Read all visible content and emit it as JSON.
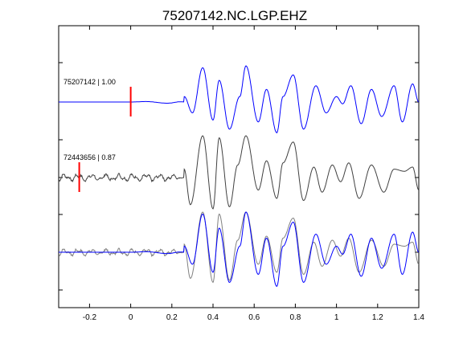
{
  "chart_data": {
    "type": "line",
    "title": "75207142.NC.LGP.EHZ",
    "xlabel": "",
    "ylabel": "",
    "xlim": [
      -0.35,
      1.4
    ],
    "x_ticks": [
      {
        "value": -0.2,
        "label": "-0.2"
      },
      {
        "value": 0,
        "label": "0"
      },
      {
        "value": 0.2,
        "label": "0.2"
      },
      {
        "value": 0.4,
        "label": "0.4"
      },
      {
        "value": 0.6,
        "label": "0.6"
      },
      {
        "value": 0.8,
        "label": "0.8"
      },
      {
        "value": 1.0,
        "label": "1"
      },
      {
        "value": 1.2,
        "label": "1.2"
      },
      {
        "value": 1.4,
        "label": "1.4"
      }
    ],
    "grid": false,
    "legend": "none",
    "traces": [
      {
        "id": "trace-1",
        "label": "75207142 | 1.00",
        "color": "#0000ff",
        "pick_time": 0.0
      },
      {
        "id": "trace-2",
        "label": "72443656 | 0.87",
        "color": "#404040",
        "pick_time": -0.25
      },
      {
        "id": "overlay",
        "label": "",
        "components": [
          "trace-2",
          "trace-1"
        ]
      }
    ],
    "pick_color": "#ff0000",
    "waveform_peaks": {
      "trace-1": [
        {
          "x": 0.26,
          "y": 0.15
        },
        {
          "x": 0.3,
          "y": -0.3
        },
        {
          "x": 0.35,
          "y": 0.95
        },
        {
          "x": 0.4,
          "y": -0.5
        },
        {
          "x": 0.43,
          "y": 0.6
        },
        {
          "x": 0.48,
          "y": -0.75
        },
        {
          "x": 0.53,
          "y": 0.15
        },
        {
          "x": 0.56,
          "y": 1.0
        },
        {
          "x": 0.62,
          "y": -0.55
        },
        {
          "x": 0.66,
          "y": 0.35
        },
        {
          "x": 0.71,
          "y": -0.85
        },
        {
          "x": 0.74,
          "y": 0.15
        },
        {
          "x": 0.79,
          "y": 0.75
        },
        {
          "x": 0.84,
          "y": -0.75
        },
        {
          "x": 0.9,
          "y": 0.45
        },
        {
          "x": 0.95,
          "y": -0.3
        },
        {
          "x": 1.0,
          "y": 0.15
        },
        {
          "x": 1.03,
          "y": -0.05
        },
        {
          "x": 1.07,
          "y": 0.45
        },
        {
          "x": 1.12,
          "y": -0.6
        },
        {
          "x": 1.17,
          "y": 0.35
        },
        {
          "x": 1.22,
          "y": -0.4
        },
        {
          "x": 1.28,
          "y": 0.45
        },
        {
          "x": 1.32,
          "y": -0.55
        },
        {
          "x": 1.37,
          "y": 0.5
        },
        {
          "x": 1.4,
          "y": 0.0
        }
      ],
      "trace-2": [
        {
          "x": 0.26,
          "y": 0.2
        },
        {
          "x": 0.29,
          "y": -0.65
        },
        {
          "x": 0.35,
          "y": 1.0
        },
        {
          "x": 0.4,
          "y": -0.75
        },
        {
          "x": 0.43,
          "y": 0.95
        },
        {
          "x": 0.48,
          "y": -0.7
        },
        {
          "x": 0.52,
          "y": 0.3
        },
        {
          "x": 0.56,
          "y": 1.0
        },
        {
          "x": 0.62,
          "y": -0.3
        },
        {
          "x": 0.66,
          "y": 0.4
        },
        {
          "x": 0.71,
          "y": -0.5
        },
        {
          "x": 0.74,
          "y": 0.35
        },
        {
          "x": 0.79,
          "y": 0.85
        },
        {
          "x": 0.84,
          "y": -0.55
        },
        {
          "x": 0.89,
          "y": 0.25
        },
        {
          "x": 0.93,
          "y": -0.35
        },
        {
          "x": 0.98,
          "y": 0.3
        },
        {
          "x": 1.02,
          "y": -0.1
        },
        {
          "x": 1.06,
          "y": 0.35
        },
        {
          "x": 1.11,
          "y": -0.5
        },
        {
          "x": 1.17,
          "y": 0.3
        },
        {
          "x": 1.23,
          "y": -0.35
        },
        {
          "x": 1.28,
          "y": 0.2
        },
        {
          "x": 1.33,
          "y": 0.15
        },
        {
          "x": 1.37,
          "y": 0.25
        },
        {
          "x": 1.4,
          "y": -0.3
        }
      ]
    }
  }
}
